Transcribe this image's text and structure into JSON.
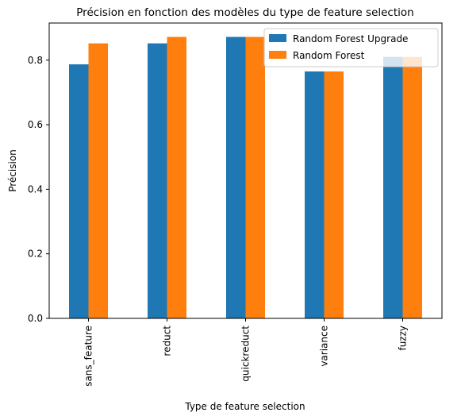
{
  "chart_data": {
    "type": "bar",
    "title": "Précision en fonction des modèles du type de feature selection",
    "xlabel": "Type de feature selection",
    "ylabel": "Précision",
    "categories": [
      "sans_feature",
      "reduct",
      "quickreduct",
      "variance",
      "fuzzy"
    ],
    "series": [
      {
        "name": "Random Forest Upgrade",
        "color": "#1f77b4",
        "values": [
          0.787,
          0.852,
          0.872,
          0.765,
          0.81
        ]
      },
      {
        "name": "Random Forest",
        "color": "#ff7f0e",
        "values": [
          0.852,
          0.872,
          0.872,
          0.765,
          0.81
        ]
      }
    ],
    "ylim": [
      0,
      0.915
    ],
    "yticks": [
      0.0,
      0.2,
      0.4,
      0.6,
      0.8
    ],
    "ytick_labels": [
      "0.0",
      "0.2",
      "0.4",
      "0.6",
      "0.8"
    ],
    "grid": false,
    "legend_position": "top-right"
  }
}
